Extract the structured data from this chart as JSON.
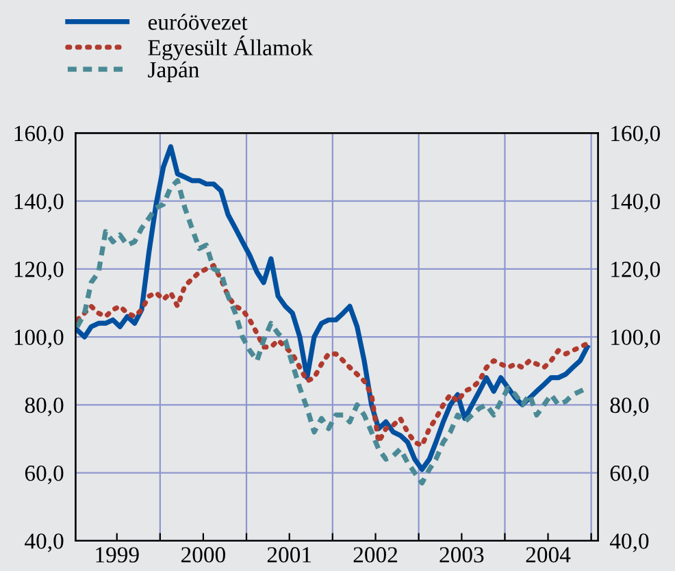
{
  "chart_data": {
    "type": "line",
    "x": [
      "1999-01-15",
      "1999-02-15",
      "1999-03-15",
      "1999-04-15",
      "1999-05-15",
      "1999-06-15",
      "1999-07-15",
      "1999-08-15",
      "1999-09-15",
      "1999-10-15",
      "1999-11-15",
      "1999-12-15",
      "2000-01-15",
      "2000-02-15",
      "2000-03-15",
      "2000-04-15",
      "2000-05-15",
      "2000-06-15",
      "2000-07-15",
      "2000-08-15",
      "2000-09-15",
      "2000-10-15",
      "2000-11-15",
      "2000-12-15",
      "2001-01-15",
      "2001-02-15",
      "2001-03-15",
      "2001-04-15",
      "2001-05-15",
      "2001-06-15",
      "2001-07-15",
      "2001-08-15",
      "2001-09-15",
      "2001-10-15",
      "2001-11-15",
      "2001-12-15",
      "2002-01-15",
      "2002-02-15",
      "2002-03-15",
      "2002-04-15",
      "2002-05-15",
      "2002-06-15",
      "2002-07-15",
      "2002-08-15",
      "2002-09-15",
      "2002-10-15",
      "2002-11-15",
      "2002-12-15",
      "2003-01-15",
      "2003-02-15",
      "2003-03-15",
      "2003-04-15",
      "2003-05-15",
      "2003-06-15",
      "2003-07-15",
      "2003-08-15",
      "2003-09-15",
      "2003-10-15",
      "2003-11-15",
      "2003-12-15",
      "2004-01-15",
      "2004-02-15",
      "2004-03-15",
      "2004-04-15",
      "2004-05-15",
      "2004-06-15",
      "2004-07-15",
      "2004-08-15",
      "2004-09-15",
      "2004-10-15",
      "2004-11-15",
      "2004-12-15"
    ],
    "series": [
      {
        "name": "euróövezet",
        "color": "#0050a0",
        "line_style": "solid",
        "values": [
          102,
          100,
          103,
          104,
          104,
          105,
          103,
          106,
          104,
          108,
          125,
          139,
          150,
          156,
          148,
          147,
          146,
          146,
          145,
          145,
          143,
          136,
          132,
          128,
          124,
          119,
          116,
          123,
          112,
          109,
          107,
          100,
          88,
          100,
          104,
          105,
          105,
          107,
          109,
          103,
          93,
          80,
          73,
          75,
          72,
          71,
          69,
          64,
          61,
          64,
          69,
          75,
          80,
          83,
          76,
          80,
          84,
          88,
          84,
          88,
          85,
          82,
          80,
          82,
          84,
          86,
          88,
          88,
          89,
          91,
          93,
          97
        ]
      },
      {
        "name": "Egyesült Államok",
        "color": "#b03a2e",
        "line_style": "dotted",
        "values": [
          105,
          107,
          109,
          107,
          106,
          108,
          109,
          107,
          106,
          108,
          112,
          113,
          111,
          113,
          109,
          115,
          117,
          119,
          120,
          121,
          117,
          112,
          109,
          108,
          105,
          101,
          97,
          97,
          99,
          97,
          95,
          91,
          87,
          88,
          92,
          95,
          95,
          93,
          91,
          89,
          87,
          83,
          69,
          73,
          74,
          76,
          72,
          69,
          68,
          73,
          76,
          80,
          83,
          81,
          84,
          85,
          87,
          91,
          93,
          92,
          91,
          92,
          91,
          93,
          92,
          91,
          93,
          96,
          95,
          96,
          97,
          98
        ]
      },
      {
        "name": "Japán",
        "color": "#4a8a96",
        "line_style": "dashed",
        "values": [
          103,
          107,
          116,
          119,
          131,
          128,
          130,
          127,
          128,
          132,
          135,
          138,
          139,
          144,
          146,
          138,
          132,
          126,
          127,
          120,
          119,
          112,
          107,
          100,
          96,
          93,
          99,
          104,
          101,
          99,
          92,
          85,
          79,
          72,
          76,
          73,
          77,
          77,
          75,
          80,
          77,
          72,
          67,
          64,
          65,
          67,
          63,
          60,
          57,
          61,
          64,
          69,
          72,
          77,
          75,
          77,
          79,
          80,
          77,
          81,
          85,
          83,
          80,
          83,
          77,
          80,
          83,
          80,
          81,
          83,
          84,
          85
        ]
      }
    ],
    "xlim": [
      "1999-01-08",
      "2005-01-30"
    ],
    "xticks": [
      {
        "value": "1999-07-02",
        "label": "1999"
      },
      {
        "value": "2000-01-01",
        "label": null
      },
      {
        "value": "2000-07-02",
        "label": "2000"
      },
      {
        "value": "2001-01-01",
        "label": null
      },
      {
        "value": "2001-07-02",
        "label": "2001"
      },
      {
        "value": "2002-01-01",
        "label": null
      },
      {
        "value": "2002-07-02",
        "label": "2002"
      },
      {
        "value": "2003-01-01",
        "label": null
      },
      {
        "value": "2003-07-02",
        "label": "2003"
      },
      {
        "value": "2004-01-01",
        "label": null
      },
      {
        "value": "2004-07-02",
        "label": "2004"
      },
      {
        "value": "2005-01-01",
        "label": null
      }
    ],
    "ylim": [
      40,
      160
    ],
    "yticks": [
      {
        "value": 40,
        "label": "40,0"
      },
      {
        "value": 60,
        "label": "60,0"
      },
      {
        "value": 80,
        "label": "80,0"
      },
      {
        "value": 100,
        "label": "100,0"
      },
      {
        "value": 120,
        "label": "120,0"
      },
      {
        "value": 140,
        "label": "140,0"
      },
      {
        "value": 160,
        "label": "160,0"
      }
    ],
    "y2lim": [
      40,
      160
    ],
    "y2ticks": [
      {
        "value": 40,
        "label": "40,0"
      },
      {
        "value": 60,
        "label": "60,0"
      },
      {
        "value": 80,
        "label": "80,0"
      },
      {
        "value": 100,
        "label": "100,0"
      },
      {
        "value": 120,
        "label": "120,0"
      },
      {
        "value": 140,
        "label": "140,0"
      },
      {
        "value": 160,
        "label": "160,0"
      }
    ],
    "grid": true,
    "legend": "top left"
  }
}
